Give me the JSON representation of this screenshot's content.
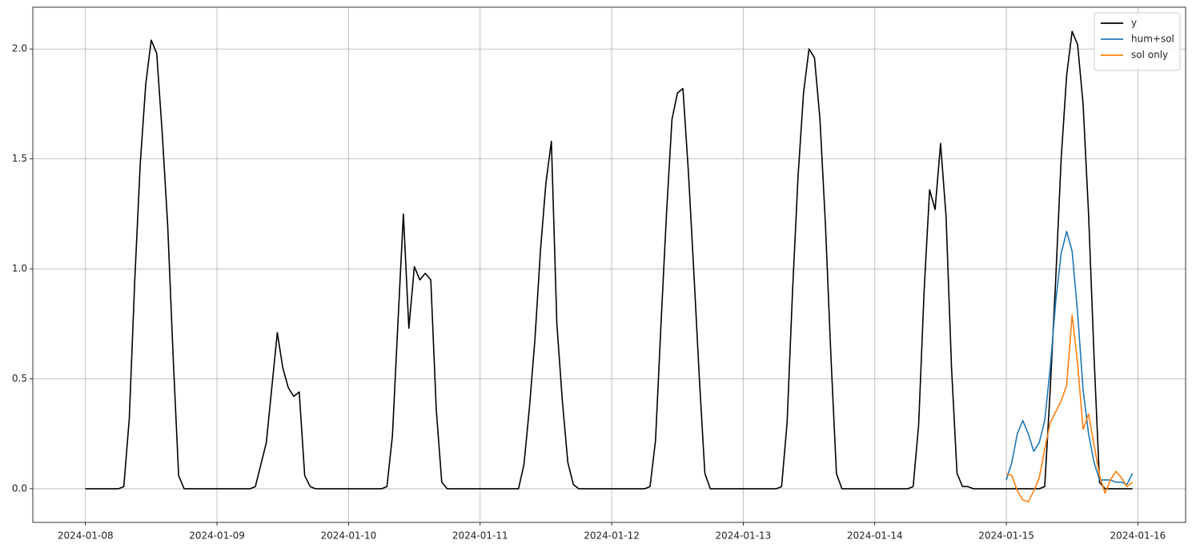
{
  "chart_data": {
    "type": "line",
    "xlim": [
      -9.6,
      200.7
    ],
    "ylim": [
      -0.153,
      2.19
    ],
    "xticks": [
      {
        "value": 0,
        "label": "2024-01-08"
      },
      {
        "value": 24,
        "label": "2024-01-09"
      },
      {
        "value": 48,
        "label": "2024-01-10"
      },
      {
        "value": 72,
        "label": "2024-01-11"
      },
      {
        "value": 96,
        "label": "2024-01-12"
      },
      {
        "value": 120,
        "label": "2024-01-13"
      },
      {
        "value": 144,
        "label": "2024-01-14"
      },
      {
        "value": 168,
        "label": "2024-01-15"
      },
      {
        "value": 192,
        "label": "2024-01-16"
      }
    ],
    "yticks": [
      {
        "value": 0,
        "label": "0.0"
      },
      {
        "value": 0.5,
        "label": "0.5"
      },
      {
        "value": 1,
        "label": "1.0"
      },
      {
        "value": 1.5,
        "label": "1.5"
      },
      {
        "value": 2,
        "label": "2.0"
      }
    ],
    "grid": true,
    "legend": "upper right",
    "series": [
      {
        "name": "y",
        "color": "#000000",
        "x": [
          0,
          1,
          2,
          3,
          4,
          5,
          6,
          7,
          8,
          9,
          10,
          11,
          12,
          13,
          14,
          15,
          16,
          17,
          18,
          19,
          20,
          21,
          22,
          23,
          24,
          25,
          26,
          27,
          28,
          29,
          30,
          31,
          32,
          33,
          34,
          35,
          36,
          37,
          38,
          39,
          40,
          41,
          42,
          43,
          44,
          45,
          46,
          47,
          48,
          49,
          50,
          51,
          52,
          53,
          54,
          55,
          56,
          57,
          58,
          59,
          60,
          61,
          62,
          63,
          64,
          65,
          66,
          67,
          68,
          69,
          70,
          71,
          72,
          73,
          74,
          75,
          76,
          77,
          78,
          79,
          80,
          81,
          82,
          83,
          84,
          85,
          86,
          87,
          88,
          89,
          90,
          91,
          92,
          93,
          94,
          95,
          96,
          97,
          98,
          99,
          100,
          101,
          102,
          103,
          104,
          105,
          106,
          107,
          108,
          109,
          110,
          111,
          112,
          113,
          114,
          115,
          116,
          117,
          118,
          119,
          120,
          121,
          122,
          123,
          124,
          125,
          126,
          127,
          128,
          129,
          130,
          131,
          132,
          133,
          134,
          135,
          136,
          137,
          138,
          139,
          140,
          141,
          142,
          143,
          144,
          145,
          146,
          147,
          148,
          149,
          150,
          151,
          152,
          153,
          154,
          155,
          156,
          157,
          158,
          159,
          160,
          161,
          162,
          163,
          164,
          165,
          166,
          167,
          168,
          169,
          170,
          171,
          172,
          173,
          174,
          175,
          176,
          177,
          178,
          179,
          180,
          181,
          182,
          183,
          184,
          185,
          186,
          187,
          188,
          189,
          190,
          191
        ],
        "values": [
          0,
          0,
          0,
          0,
          0,
          0,
          0,
          0.01,
          0.32,
          0.95,
          1.48,
          1.84,
          2.04,
          1.98,
          1.62,
          1.2,
          0.6,
          0.06,
          0,
          0,
          0,
          0,
          0,
          0,
          0,
          0,
          0,
          0,
          0,
          0,
          0,
          0.01,
          0.11,
          0.21,
          0.46,
          0.71,
          0.55,
          0.46,
          0.42,
          0.44,
          0.06,
          0.01,
          0,
          0,
          0,
          0,
          0,
          0,
          0,
          0,
          0,
          0,
          0,
          0,
          0,
          0.01,
          0.24,
          0.75,
          1.25,
          0.73,
          1.01,
          0.95,
          0.98,
          0.95,
          0.36,
          0.03,
          0,
          0,
          0,
          0,
          0,
          0,
          0,
          0,
          0,
          0,
          0,
          0,
          0,
          0,
          0.11,
          0.37,
          0.68,
          1.08,
          1.39,
          1.58,
          0.75,
          0.4,
          0.12,
          0.02,
          0,
          0,
          0,
          0,
          0,
          0,
          0,
          0,
          0,
          0,
          0,
          0,
          0,
          0.01,
          0.22,
          0.75,
          1.25,
          1.68,
          1.8,
          1.82,
          1.44,
          0.98,
          0.5,
          0.07,
          0,
          0,
          0,
          0,
          0,
          0,
          0,
          0,
          0,
          0,
          0,
          0,
          0,
          0.01,
          0.3,
          0.9,
          1.42,
          1.8,
          2.0,
          1.96,
          1.68,
          1.2,
          0.6,
          0.07,
          0,
          0,
          0,
          0,
          0,
          0,
          0,
          0,
          0,
          0,
          0,
          0,
          0,
          0.01,
          0.29,
          0.9,
          1.36,
          1.27,
          1.57,
          1.24,
          0.55,
          0.07,
          0.01,
          0.01,
          0,
          0,
          0,
          0,
          0,
          0,
          0,
          0,
          0,
          0,
          0,
          0,
          0,
          0.01,
          0.45,
          0.95,
          1.5,
          1.88,
          2.08,
          2.02,
          1.75,
          1.25,
          0.6,
          0.03,
          0,
          0,
          0,
          0,
          0,
          0
        ]
      },
      {
        "name": "hum+sol",
        "color": "#1f77b4",
        "x": [
          168,
          169,
          170,
          171,
          172,
          173,
          174,
          175,
          176,
          177,
          178,
          179,
          180,
          181,
          182,
          183,
          184,
          185,
          186,
          187,
          188,
          189,
          190,
          191
        ],
        "values": [
          0.04,
          0.12,
          0.25,
          0.31,
          0.25,
          0.17,
          0.21,
          0.31,
          0.55,
          0.85,
          1.07,
          1.17,
          1.08,
          0.8,
          0.45,
          0.25,
          0.12,
          0.04,
          0.04,
          0.04,
          0.03,
          0.03,
          0.02,
          0.07
        ]
      },
      {
        "name": "sol only",
        "color": "#ff7f0e",
        "x": [
          168,
          169,
          170,
          171,
          172,
          173,
          174,
          175,
          176,
          177,
          178,
          179,
          180,
          181,
          182,
          183,
          184,
          185,
          186,
          187,
          188,
          189,
          190,
          191
        ],
        "values": [
          0.07,
          0.06,
          -0.01,
          -0.05,
          -0.06,
          -0.01,
          0.05,
          0.18,
          0.3,
          0.35,
          0.4,
          0.47,
          0.79,
          0.57,
          0.27,
          0.34,
          0.2,
          0.06,
          -0.02,
          0.04,
          0.08,
          0.05,
          0.01,
          0.03
        ]
      }
    ]
  }
}
